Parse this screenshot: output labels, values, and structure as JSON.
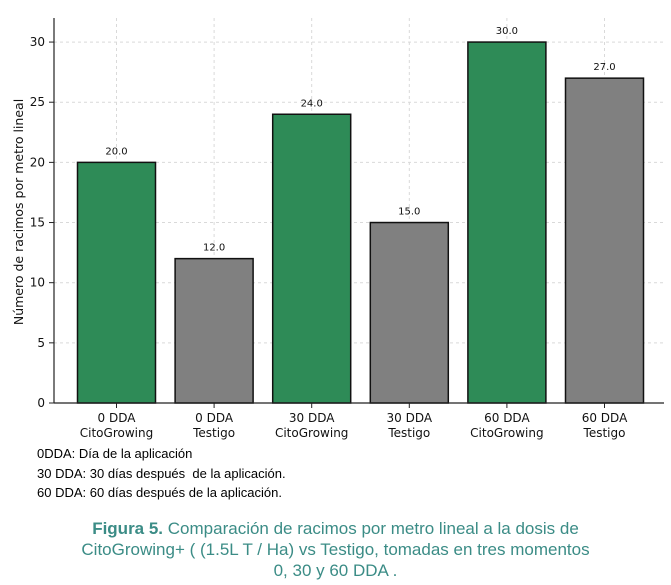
{
  "chart_data": {
    "type": "bar",
    "ylabel": "Número de racimos por metro lineal",
    "ylim": [
      0,
      32
    ],
    "yticks": [
      0,
      5,
      10,
      15,
      20,
      25,
      30
    ],
    "grid": true,
    "categories": [
      [
        "0 DDA",
        "CitoGrowing"
      ],
      [
        "0 DDA",
        "Testigo"
      ],
      [
        "30 DDA",
        "CitoGrowing"
      ],
      [
        "30 DDA",
        "Testigo"
      ],
      [
        "60 DDA",
        "CitoGrowing"
      ],
      [
        "60 DDA",
        "Testigo"
      ]
    ],
    "values": [
      20.0,
      12.0,
      24.0,
      15.0,
      30.0,
      27.0
    ],
    "value_labels": [
      "20.0",
      "12.0",
      "24.0",
      "15.0",
      "30.0",
      "27.0"
    ],
    "colors": [
      "#2e8b57",
      "#808080",
      "#2e8b57",
      "#808080",
      "#2e8b57",
      "#808080"
    ]
  },
  "notes": [
    "0DDA: Día de la aplicación",
    "30 DDA: 30 días después  de la aplicación.",
    "60 DDA: 60 días después de la aplicación."
  ],
  "caption": {
    "label": "Figura 5.",
    "text_line1": "  Comparación de racimos por metro lineal a la dosis de",
    "text_line2": "CitoGrowing+ ( (1.5L T / Ha)  vs Testigo, tomadas  en tres momentos",
    "text_line3": "0, 30 y 60 DDA ."
  }
}
